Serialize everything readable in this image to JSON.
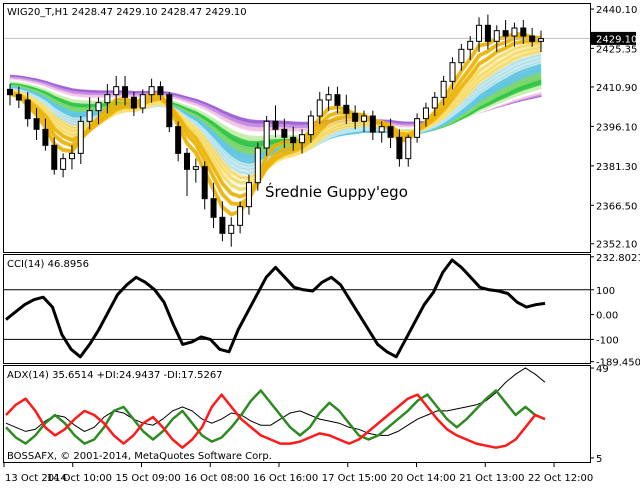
{
  "colors": {
    "background": "#ffffff",
    "frame": "#000000",
    "price_tag_bg": "#000000",
    "price_tag_fg": "#ffffff",
    "cci_line": "#000000",
    "adx_line": "#000000",
    "plus_di_line": "#2e8b22",
    "minus_di_line": "#ff1a1a",
    "current_price_line": "#c0c0c0",
    "guppy_palette": [
      "#f2b400",
      "#ffe070",
      "#bfe8f4",
      "#5fc8ea",
      "#7fd870",
      "#30c848",
      "#c8f0b0",
      "#ffffff",
      "#f5c8e6",
      "#c890e6",
      "#9f62d4"
    ]
  },
  "chart_data": [
    {
      "type": "candlestick",
      "title": "WIG20_T,H1 2428.47 2429.10 2428.47 2429.10",
      "annotation": "Średnie Guppy'ego",
      "current_price_label": "2429.10",
      "current_price": 2429.1,
      "ylim": [
        2349,
        2442
      ],
      "y_ticks": [
        2440.1,
        2425.35,
        2410.9,
        2396.1,
        2381.3,
        2366.5,
        2352.1
      ],
      "y_tick_labels": [
        "2440.10",
        "2425.35",
        "2410.90",
        "2396.10",
        "2381.30",
        "2366.50",
        "2352.10"
      ],
      "x_ticks": [
        "13 Oct 2014",
        "14 Oct 10:00",
        "15 Oct 09:00",
        "16 Oct 08:00",
        "16 Oct 16:00",
        "17 Oct 15:00",
        "20 Oct 14:00",
        "21 Oct 13:00",
        "22 Oct 12:00"
      ],
      "candles": [
        [
          2410,
          2412,
          2404,
          2408
        ],
        [
          2408,
          2411,
          2403,
          2406
        ],
        [
          2406,
          2409,
          2396,
          2399
        ],
        [
          2399,
          2403,
          2391,
          2395
        ],
        [
          2395,
          2399,
          2387,
          2389
        ],
        [
          2389,
          2392,
          2378,
          2380
        ],
        [
          2380,
          2386,
          2377,
          2384
        ],
        [
          2384,
          2389,
          2380,
          2386
        ],
        [
          2386,
          2400,
          2382,
          2398
        ],
        [
          2398,
          2407,
          2395,
          2402
        ],
        [
          2402,
          2407,
          2397,
          2405
        ],
        [
          2405,
          2412,
          2401,
          2408
        ],
        [
          2408,
          2415,
          2404,
          2411
        ],
        [
          2411,
          2415,
          2404,
          2407
        ],
        [
          2407,
          2409,
          2400,
          2403
        ],
        [
          2403,
          2410,
          2401,
          2408
        ],
        [
          2408,
          2414,
          2405,
          2411
        ],
        [
          2411,
          2413,
          2406,
          2408
        ],
        [
          2408,
          2409,
          2394,
          2396
        ],
        [
          2396,
          2398,
          2383,
          2386
        ],
        [
          2386,
          2388,
          2370,
          2380
        ],
        [
          2380,
          2384,
          2375,
          2381
        ],
        [
          2381,
          2383,
          2365,
          2369
        ],
        [
          2369,
          2375,
          2358,
          2362
        ],
        [
          2362,
          2368,
          2353,
          2356
        ],
        [
          2356,
          2362,
          2351,
          2359
        ],
        [
          2359,
          2368,
          2356,
          2366
        ],
        [
          2366,
          2378,
          2363,
          2375
        ],
        [
          2375,
          2390,
          2372,
          2388
        ],
        [
          2388,
          2400,
          2385,
          2398
        ],
        [
          2398,
          2404,
          2392,
          2395
        ],
        [
          2395,
          2399,
          2388,
          2392
        ],
        [
          2392,
          2396,
          2387,
          2390
        ],
        [
          2390,
          2395,
          2386,
          2393
        ],
        [
          2393,
          2402,
          2390,
          2400
        ],
        [
          2400,
          2409,
          2397,
          2406
        ],
        [
          2406,
          2411,
          2402,
          2408
        ],
        [
          2408,
          2411,
          2401,
          2404
        ],
        [
          2404,
          2408,
          2397,
          2401
        ],
        [
          2401,
          2404,
          2395,
          2398
        ],
        [
          2398,
          2402,
          2394,
          2400
        ],
        [
          2400,
          2402,
          2391,
          2394
        ],
        [
          2394,
          2398,
          2390,
          2396
        ],
        [
          2396,
          2399,
          2388,
          2392
        ],
        [
          2392,
          2395,
          2381,
          2384
        ],
        [
          2384,
          2393,
          2381,
          2392
        ],
        [
          2392,
          2401,
          2390,
          2399
        ],
        [
          2399,
          2405,
          2396,
          2403
        ],
        [
          2403,
          2409,
          2400,
          2407
        ],
        [
          2407,
          2415,
          2404,
          2413
        ],
        [
          2413,
          2422,
          2410,
          2420
        ],
        [
          2420,
          2427,
          2417,
          2425
        ],
        [
          2425,
          2430,
          2421,
          2428
        ],
        [
          2428,
          2437,
          2424,
          2434
        ],
        [
          2434,
          2438,
          2425,
          2428
        ],
        [
          2428,
          2434,
          2424,
          2432
        ],
        [
          2432,
          2436,
          2426,
          2430
        ],
        [
          2430,
          2435,
          2426,
          2433
        ],
        [
          2433,
          2436,
          2427,
          2430
        ],
        [
          2430,
          2433,
          2426,
          2428
        ],
        [
          2428,
          2432,
          2424,
          2429
        ]
      ]
    },
    {
      "type": "line",
      "title": "CCI(14) 46.8956",
      "ylim": [
        -195,
        240
      ],
      "y_ticks": [
        232.8021,
        100,
        0,
        -100,
        -189.4501
      ],
      "y_tick_labels": [
        "232.8021",
        "100",
        "0.00",
        "-100",
        "-189.4501"
      ],
      "levels": [
        100,
        -100
      ],
      "series": [
        {
          "values": [
            -20,
            10,
            40,
            60,
            70,
            30,
            -80,
            -140,
            -170,
            -120,
            -60,
            10,
            80,
            120,
            150,
            130,
            100,
            50,
            -40,
            -120,
            -110,
            -90,
            -100,
            -140,
            -150,
            -60,
            10,
            80,
            150,
            190,
            150,
            110,
            100,
            95,
            130,
            150,
            120,
            60,
            0,
            -60,
            -120,
            -150,
            -170,
            -100,
            -30,
            40,
            90,
            170,
            220,
            190,
            150,
            110,
            100,
            95,
            85,
            50,
            30,
            40,
            45
          ]
        }
      ]
    },
    {
      "type": "line",
      "title": "ADX(14) 35.6514 +DI:24.9437 -DI:17.5267",
      "footer_label": "BOSSAFX, © 2001-2014, MetaQuotes Software Corp.",
      "ylim": [
        3,
        50
      ],
      "y_ticks": [
        49,
        5
      ],
      "y_tick_labels": [
        "49",
        "5"
      ],
      "series": [
        {
          "values": [
            22,
            20,
            18,
            19,
            23,
            26,
            25,
            21,
            18,
            20,
            25,
            28,
            27,
            24,
            22,
            21,
            24,
            28,
            30,
            28,
            24,
            22,
            24,
            27,
            26,
            23,
            21,
            21,
            24,
            27,
            28,
            26,
            24,
            23,
            22,
            20,
            19,
            17,
            16,
            16,
            18,
            21,
            24,
            26,
            28,
            28,
            29,
            30,
            31,
            33,
            37,
            42,
            46,
            49,
            46,
            42
          ]
        },
        {
          "values": [
            20,
            15,
            12,
            16,
            22,
            26,
            22,
            16,
            12,
            14,
            20,
            28,
            30,
            24,
            18,
            14,
            18,
            24,
            28,
            22,
            16,
            13,
            15,
            20,
            26,
            33,
            38,
            32,
            26,
            20,
            16,
            20,
            27,
            32,
            28,
            22,
            16,
            14,
            16,
            20,
            24,
            28,
            33,
            36,
            30,
            24,
            20,
            24,
            29,
            34,
            38,
            32,
            26,
            30,
            26,
            24
          ]
        },
        {
          "values": [
            26,
            31,
            34,
            28,
            20,
            16,
            19,
            24,
            28,
            26,
            22,
            16,
            12,
            16,
            22,
            25,
            20,
            14,
            10,
            14,
            20,
            30,
            36,
            30,
            24,
            20,
            16,
            14,
            12,
            12,
            13,
            15,
            17,
            16,
            14,
            12,
            14,
            18,
            22,
            26,
            30,
            34,
            36,
            30,
            24,
            19,
            16,
            14,
            12,
            11,
            10,
            11,
            14,
            20,
            26,
            24
          ]
        }
      ]
    }
  ]
}
